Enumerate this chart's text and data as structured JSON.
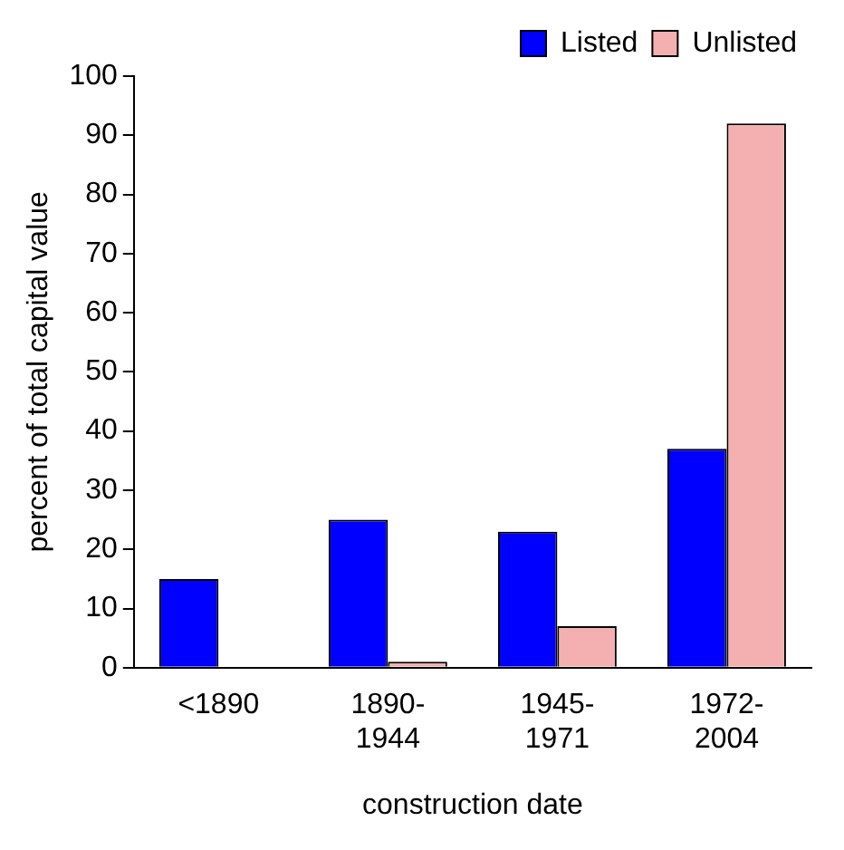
{
  "chart_data": {
    "type": "bar",
    "xlabel": "construction date",
    "ylabel": "percent of total capital value",
    "categories": [
      [
        "<1890"
      ],
      [
        "1890-",
        "1944"
      ],
      [
        "1945-",
        "1971"
      ],
      [
        "1972-",
        "2004"
      ]
    ],
    "series": [
      {
        "name": "Listed",
        "color": "#0000ff",
        "values": [
          15,
          25,
          23,
          37
        ]
      },
      {
        "name": "Unlisted",
        "color": "#f4b0b0",
        "values": [
          0,
          1,
          7,
          92
        ]
      }
    ],
    "ylim": [
      0,
      100
    ],
    "yticks": [
      0,
      10,
      20,
      30,
      40,
      50,
      60,
      70,
      80,
      90,
      100
    ],
    "grid": false,
    "legend": "top right"
  }
}
